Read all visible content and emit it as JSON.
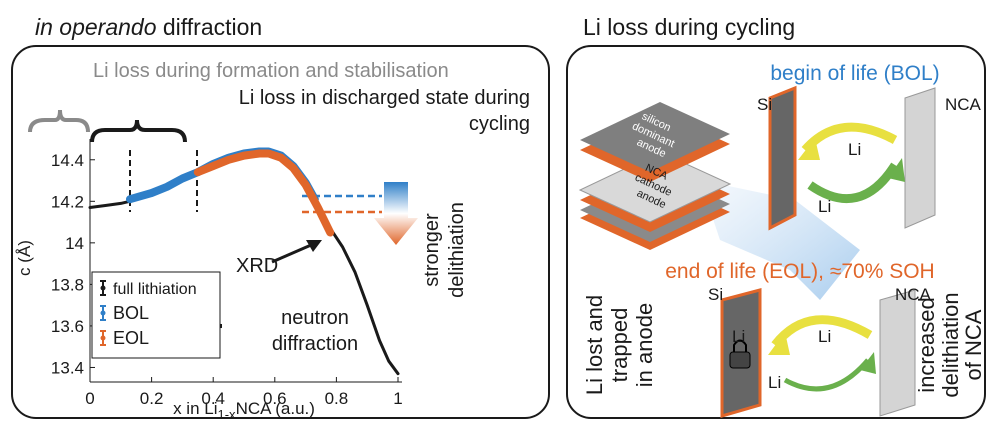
{
  "chart_data": {
    "type": "line",
    "title_italic": "in operando",
    "title": "diffraction",
    "ylabel": "c (Å)",
    "xlabel_parts": [
      "x in Li",
      "1-x",
      "NCA (a.u.)"
    ],
    "xlim": [
      0,
      1
    ],
    "ylim": [
      13.33,
      14.5
    ],
    "xticks": [
      0,
      0.2,
      0.4,
      0.6,
      0.8,
      1
    ],
    "yticks": [
      13.4,
      13.6,
      13.8,
      14,
      14.2,
      14.4
    ],
    "legend": "lower left",
    "series": [
      {
        "name": "full lithiation",
        "color": "#1a1a1a",
        "x": [
          0,
          0.05,
          0.1,
          0.13,
          0.2,
          0.25,
          0.3,
          0.35,
          0.4,
          0.45,
          0.5,
          0.55,
          0.58,
          0.62,
          0.66,
          0.7,
          0.74,
          0.78,
          0.82,
          0.86,
          0.9,
          0.94,
          0.97,
          1
        ],
        "values": [
          14.17,
          14.18,
          14.19,
          14.2,
          14.23,
          14.26,
          14.3,
          14.33,
          14.37,
          14.4,
          14.42,
          14.43,
          14.43,
          14.41,
          14.36,
          14.28,
          14.18,
          14.07,
          13.98,
          13.86,
          13.7,
          13.53,
          13.43,
          13.37
        ]
      },
      {
        "name": "BOL",
        "color": "#2f7fc8",
        "x": [
          0.13,
          0.2,
          0.25,
          0.3,
          0.35,
          0.4,
          0.45,
          0.5,
          0.55,
          0.58,
          0.62,
          0.66,
          0.7,
          0.73
        ],
        "values": [
          14.21,
          14.24,
          14.27,
          14.31,
          14.34,
          14.38,
          14.41,
          14.43,
          14.44,
          14.44,
          14.42,
          14.37,
          14.29,
          14.21
        ]
      },
      {
        "name": "EOL",
        "color": "#e0662a",
        "x": [
          0.35,
          0.4,
          0.45,
          0.5,
          0.55,
          0.58,
          0.62,
          0.66,
          0.7,
          0.74,
          0.78
        ],
        "values": [
          14.34,
          14.37,
          14.4,
          14.42,
          14.43,
          14.43,
          14.41,
          14.36,
          14.28,
          14.17,
          14.05
        ]
      }
    ],
    "annotations": {
      "formation": "Li loss during formation and stabilisation",
      "discharged": [
        "Li loss in discharged state during",
        "cycling"
      ],
      "xrd": "XRD",
      "neutron": [
        "neutron",
        "diffraction"
      ],
      "delithiation": [
        "stronger",
        "delithiation"
      ]
    }
  },
  "diagram": {
    "title": "Li loss during cycling",
    "stack_labels": [
      "silicon",
      "dominant",
      "anode",
      "NCA",
      "cathode",
      "anode"
    ],
    "bol": {
      "title": "begin of life (BOL)",
      "anode": "Si",
      "cathode": "NCA",
      "ion_top": "Li",
      "ion_bottom": "Li"
    },
    "eol": {
      "title": "end of life (EOL), ≈70% SOH",
      "anode": "Si",
      "cathode": "NCA",
      "trapped": "Li",
      "ion_top": "Li",
      "ion_bottom": "Li"
    },
    "left_note": [
      "Li lost and",
      "trapped",
      "in anode"
    ],
    "right_note": [
      "increased",
      "delithiation",
      "of NCA"
    ]
  }
}
